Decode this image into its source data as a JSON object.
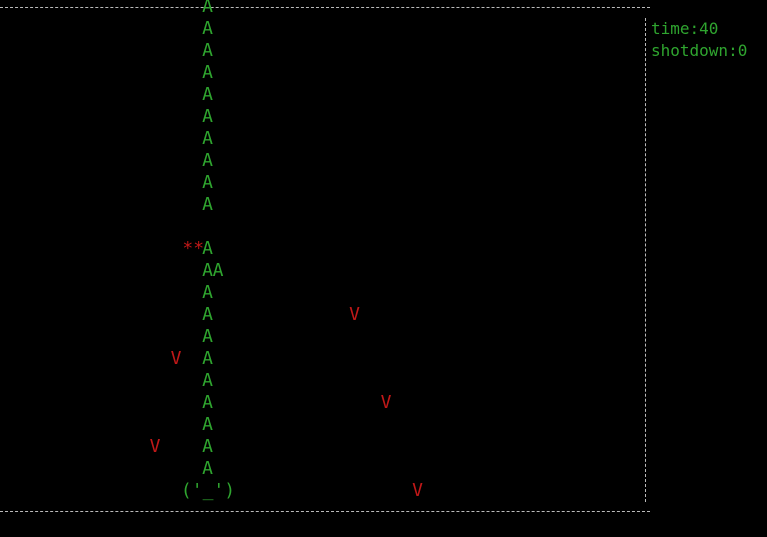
{
  "colors": {
    "background": "#000000",
    "border": "#bbbbbb",
    "player": "#2fa52f",
    "bullet": "#2fa52f",
    "enemy": "#c01818",
    "explosion": "#c01818",
    "stats": "#2fa52f"
  },
  "border": {
    "horizontal_glyph": "-",
    "vertical_glyph": "|"
  },
  "stats": {
    "time_label": "time:40",
    "shotdown_label": "shotdown:0"
  },
  "player": {
    "sprite": "('_')",
    "col": 19,
    "row": 22
  },
  "bullet_glyph": "A",
  "enemy_glyph": "V",
  "explosion_glyph": "*",
  "bullets": [
    {
      "col": 19,
      "row": 0
    },
    {
      "col": 19,
      "row": 1
    },
    {
      "col": 19,
      "row": 2
    },
    {
      "col": 19,
      "row": 3
    },
    {
      "col": 19,
      "row": 4
    },
    {
      "col": 19,
      "row": 5
    },
    {
      "col": 19,
      "row": 6
    },
    {
      "col": 19,
      "row": 7
    },
    {
      "col": 19,
      "row": 8
    },
    {
      "col": 19,
      "row": 9
    },
    {
      "col": 19,
      "row": 11
    },
    {
      "col": 19,
      "row": 12
    },
    {
      "col": 20,
      "row": 12
    },
    {
      "col": 19,
      "row": 13
    },
    {
      "col": 19,
      "row": 14
    },
    {
      "col": 19,
      "row": 15
    },
    {
      "col": 19,
      "row": 16
    },
    {
      "col": 19,
      "row": 17
    },
    {
      "col": 19,
      "row": 18
    },
    {
      "col": 19,
      "row": 19
    },
    {
      "col": 19,
      "row": 20
    },
    {
      "col": 19,
      "row": 21
    }
  ],
  "explosions": [
    {
      "col": 18,
      "row": 11,
      "text": "**"
    }
  ],
  "enemies": [
    {
      "col": 33,
      "row": 14
    },
    {
      "col": 16,
      "row": 16
    },
    {
      "col": 36,
      "row": 18
    },
    {
      "col": 14,
      "row": 20
    },
    {
      "col": 39,
      "row": 22
    }
  ]
}
